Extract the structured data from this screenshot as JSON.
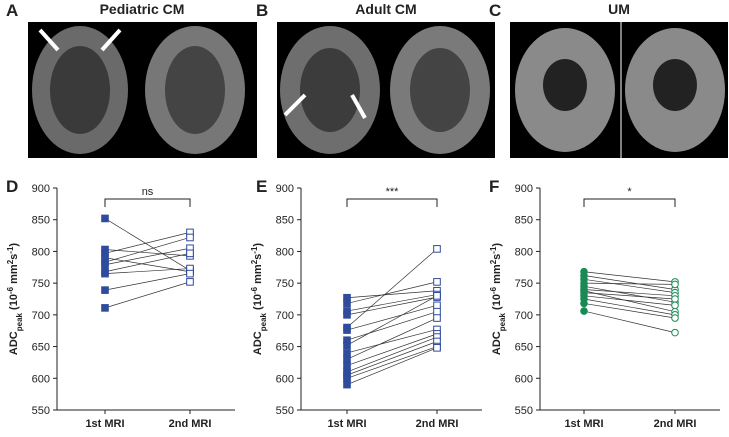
{
  "image_panels": [
    {
      "letter": "A",
      "title": "Pediatric CM"
    },
    {
      "letter": "B",
      "title": "Adult CM"
    },
    {
      "letter": "C",
      "title": "UM"
    }
  ],
  "chart_data": [
    {
      "panel": "D",
      "type": "paired",
      "categories": [
        "1st MRI",
        "2nd MRI"
      ],
      "ylabel": [
        {
          "text": "ADC"
        },
        {
          "text": "peak",
          "shift": "sub"
        },
        {
          "text": " (10"
        },
        {
          "text": "-6",
          "shift": "super"
        },
        {
          "text": " mm"
        },
        {
          "text": "2",
          "shift": "super"
        },
        {
          "text": "s"
        },
        {
          "text": "-1",
          "shift": "super"
        },
        {
          "text": ")"
        }
      ],
      "ylim": [
        550,
        900
      ],
      "yticks": [
        550,
        600,
        650,
        700,
        750,
        800,
        850,
        900
      ],
      "color": "#2f4b9c",
      "marker": "square",
      "significance": "ns",
      "values": [
        [
          852,
          770
        ],
        [
          803,
          793
        ],
        [
          797,
          830
        ],
        [
          790,
          768
        ],
        [
          783,
          822
        ],
        [
          779,
          805
        ],
        [
          768,
          797
        ],
        [
          765,
          773
        ],
        [
          739,
          765
        ],
        [
          711,
          752
        ]
      ]
    },
    {
      "panel": "E",
      "type": "paired",
      "categories": [
        "1st MRI",
        "2nd MRI"
      ],
      "ylabel": [
        {
          "text": "ADC"
        },
        {
          "text": "peak",
          "shift": "sub"
        },
        {
          "text": " (10"
        },
        {
          "text": "-6",
          "shift": "super"
        },
        {
          "text": " mm"
        },
        {
          "text": "2",
          "shift": "super"
        },
        {
          "text": "s"
        },
        {
          "text": "-1",
          "shift": "super"
        },
        {
          "text": ")"
        }
      ],
      "ylim": [
        550,
        900
      ],
      "yticks": [
        550,
        600,
        650,
        700,
        750,
        800,
        850,
        900
      ],
      "color": "#2f4b9c",
      "marker": "square",
      "significance": "***",
      "values": [
        [
          727,
          738
        ],
        [
          718,
          752
        ],
        [
          706,
          732
        ],
        [
          700,
          728
        ],
        [
          680,
          804
        ],
        [
          676,
          715
        ],
        [
          660,
          705
        ],
        [
          652,
          730
        ],
        [
          640,
          677
        ],
        [
          630,
          695
        ],
        [
          620,
          670
        ],
        [
          610,
          665
        ],
        [
          605,
          658
        ],
        [
          600,
          650
        ],
        [
          590,
          648
        ]
      ]
    },
    {
      "panel": "F",
      "type": "paired",
      "categories": [
        "1st MRI",
        "2nd MRI"
      ],
      "ylabel": [
        {
          "text": "ADC"
        },
        {
          "text": "peak",
          "shift": "sub"
        },
        {
          "text": " (10"
        },
        {
          "text": "-6",
          "shift": "super"
        },
        {
          "text": " mm"
        },
        {
          "text": "2",
          "shift": "super"
        },
        {
          "text": "s"
        },
        {
          "text": "-1",
          "shift": "super"
        },
        {
          "text": ")"
        }
      ],
      "ylim": [
        550,
        900
      ],
      "yticks": [
        550,
        600,
        650,
        700,
        750,
        800,
        850,
        900
      ],
      "color": "#1a8a55",
      "marker": "circle",
      "significance": "*",
      "values": [
        [
          768,
          752
        ],
        [
          762,
          740
        ],
        [
          756,
          735
        ],
        [
          750,
          748
        ],
        [
          745,
          720
        ],
        [
          740,
          730
        ],
        [
          738,
          705
        ],
        [
          735,
          725
        ],
        [
          730,
          715
        ],
        [
          725,
          700
        ],
        [
          718,
          695
        ],
        [
          706,
          672
        ]
      ]
    }
  ]
}
